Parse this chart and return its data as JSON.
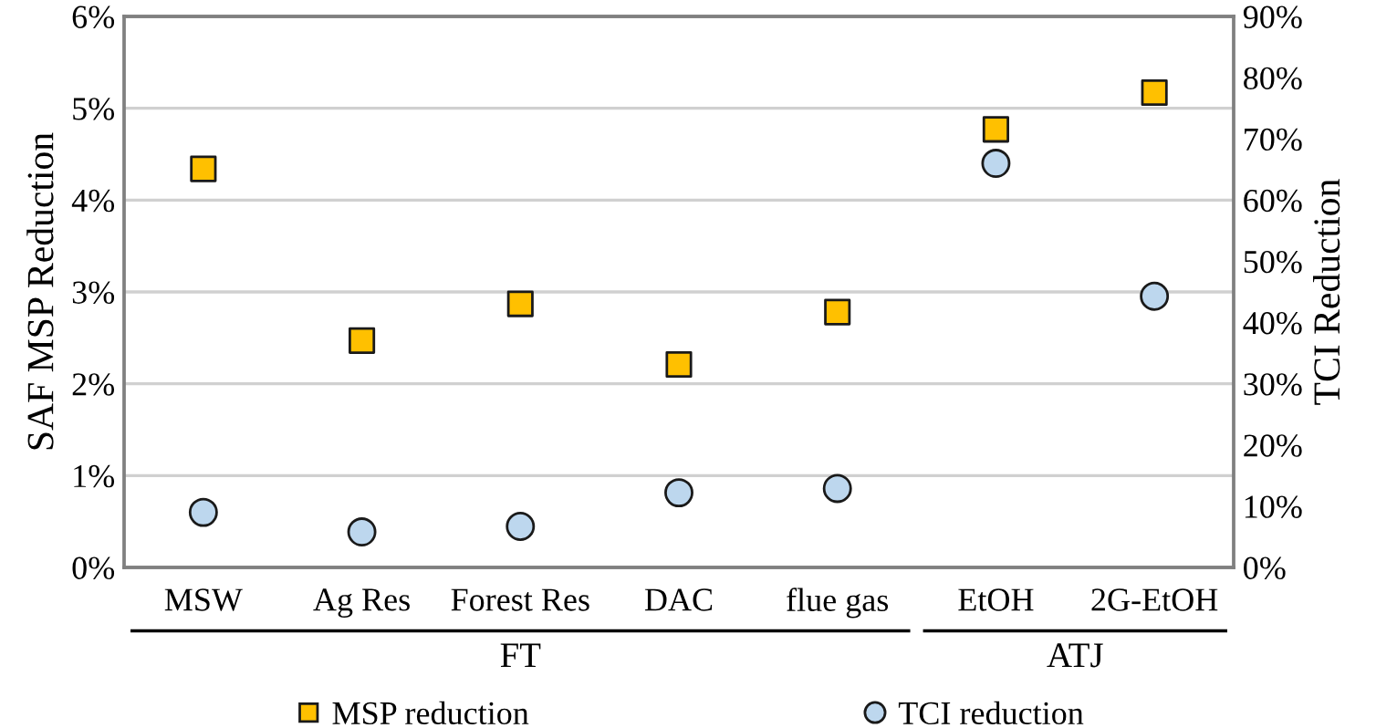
{
  "chart_data": {
    "type": "scatter",
    "categories": [
      "MSW",
      "Ag Res",
      "Forest Res",
      "DAC",
      "flue gas",
      "EtOH",
      "2G-EtOH"
    ],
    "ylabel": "SAF MSP Reduction",
    "y2label": "TCI Reduction",
    "series": [
      {
        "name": "MSP reduction",
        "color": "#ffc000",
        "marker": "square",
        "values": [
          4.34,
          2.47,
          2.87,
          2.21,
          2.78,
          4.77,
          5.17
        ]
      },
      {
        "name": "TCI reduction",
        "color": "#bdd7ee",
        "marker": "circle",
        "axis": "y2",
        "values": [
          9.0,
          5.8,
          6.7,
          12.2,
          12.9,
          66,
          44.3
        ]
      }
    ],
    "ylim": [
      0,
      6
    ],
    "yticks": [
      {
        "value": 0,
        "label": "0%"
      },
      {
        "value": 1,
        "label": "1%"
      },
      {
        "value": 2,
        "label": "2%"
      },
      {
        "value": 3,
        "label": "3%"
      },
      {
        "value": 4,
        "label": "4%"
      },
      {
        "value": 5,
        "label": "5%"
      },
      {
        "value": 6,
        "label": "6%"
      }
    ],
    "y2lim": [
      0,
      90
    ],
    "y2ticks": [
      {
        "value": 0,
        "label": "0%"
      },
      {
        "value": 10,
        "label": "10%"
      },
      {
        "value": 20,
        "label": "20%"
      },
      {
        "value": 30,
        "label": "30%"
      },
      {
        "value": 40,
        "label": "40%"
      },
      {
        "value": 50,
        "label": "50%"
      },
      {
        "value": 60,
        "label": "60%"
      },
      {
        "value": 70,
        "label": "70%"
      },
      {
        "value": 80,
        "label": "80%"
      },
      {
        "value": 90,
        "label": "90%"
      }
    ],
    "annotations": [
      "FT",
      "ATJ"
    ],
    "grid": "y",
    "legend": "bottom"
  }
}
